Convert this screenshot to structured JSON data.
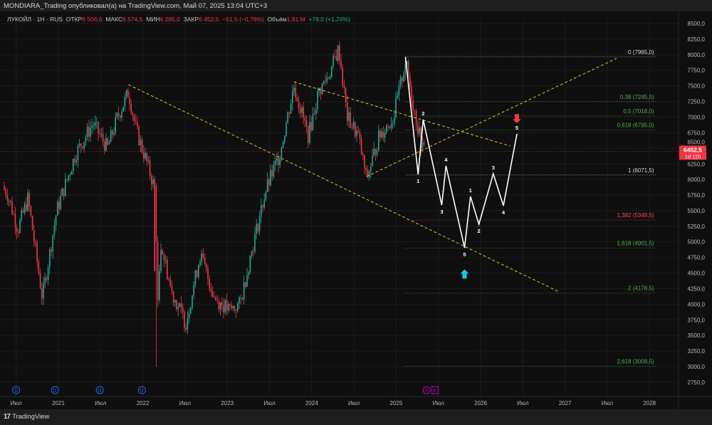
{
  "header": {
    "title": "MONDIARA_Trading опубликовал(а) на TradingView.com, Май 07, 2025 13:04 UTC+3"
  },
  "legend": {
    "symbol": "ЛУКОЙЛ · 1H · RUS",
    "open_label": "ОТКР",
    "open": "6 506,0",
    "high_label": "МАКС",
    "high": "6 574,5",
    "low_label": "МИН",
    "low": "6 285,0",
    "close_label": "ЗАКР",
    "close": "6 452,5",
    "change": "−51,5 (−0,79%)",
    "volume_label": "Объём",
    "volume": "1,91 M",
    "vol_change": "+79,0 (+1,24%)"
  },
  "price_label": {
    "value": "6452,5",
    "countdown": "1d 11h",
    "color": "#f23645"
  },
  "footer": {
    "brand": "TradingView"
  },
  "colors": {
    "up": "#22ab94",
    "down": "#f23645",
    "wave": "#ffffff",
    "trend": "#e6c229"
  },
  "chart_data": {
    "type": "candlestick",
    "y_ticks": [
      "8500,0",
      "8250,0",
      "8000,0",
      "7750,0",
      "7500,0",
      "7250,0",
      "7000,0",
      "6750,0",
      "6500,0",
      "6250,0",
      "6000,0",
      "5750,0",
      "5500,0",
      "5250,0",
      "5000,0",
      "4750,0",
      "4500,0",
      "4250,0",
      "4000,0",
      "3750,0",
      "3500,0",
      "3250,0",
      "3000,0",
      "2750,0"
    ],
    "ylim": [
      2750,
      8500
    ],
    "x_ticks": [
      {
        "t": 2020.5,
        "label": "Июл"
      },
      {
        "t": 2021,
        "label": "2021"
      },
      {
        "t": 2021.5,
        "label": "Июл"
      },
      {
        "t": 2022,
        "label": "2022"
      },
      {
        "t": 2022.5,
        "label": "Июл"
      },
      {
        "t": 2023,
        "label": "2023"
      },
      {
        "t": 2023.5,
        "label": "Июл"
      },
      {
        "t": 2024,
        "label": "2024"
      },
      {
        "t": 2024.5,
        "label": "Июл"
      },
      {
        "t": 2025,
        "label": "2025"
      },
      {
        "t": 2025.5,
        "label": "Июл"
      },
      {
        "t": 2026,
        "label": "2026"
      },
      {
        "t": 2026.5,
        "label": "Июл"
      },
      {
        "t": 2027,
        "label": "2027"
      },
      {
        "t": 2027.5,
        "label": "Июл"
      },
      {
        "t": 2028,
        "label": "2028"
      }
    ],
    "price_path": [
      [
        2020.3,
        5900
      ],
      [
        2020.39,
        5800
      ],
      [
        2020.52,
        5200
      ],
      [
        2020.64,
        5700
      ],
      [
        2020.81,
        4100
      ],
      [
        2020.98,
        5500
      ],
      [
        2021.2,
        6400
      ],
      [
        2021.41,
        6900
      ],
      [
        2021.58,
        6500
      ],
      [
        2021.7,
        7000
      ],
      [
        2021.83,
        7400
      ],
      [
        2021.92,
        6800
      ],
      [
        2022.04,
        6300
      ],
      [
        2022.13,
        5900
      ],
      [
        2022.15,
        3100
      ],
      [
        2022.21,
        5000
      ],
      [
        2022.34,
        4200
      ],
      [
        2022.51,
        3700
      ],
      [
        2022.68,
        4800
      ],
      [
        2022.85,
        4100
      ],
      [
        2023.02,
        3900
      ],
      [
        2023.15,
        4000
      ],
      [
        2023.28,
        4800
      ],
      [
        2023.45,
        5800
      ],
      [
        2023.62,
        6400
      ],
      [
        2023.79,
        7500
      ],
      [
        2023.96,
        6700
      ],
      [
        2024.08,
        7400
      ],
      [
        2024.21,
        7700
      ],
      [
        2024.32,
        8100
      ],
      [
        2024.42,
        7000
      ],
      [
        2024.55,
        6700
      ],
      [
        2024.65,
        6000
      ],
      [
        2024.8,
        6700
      ],
      [
        2024.97,
        7000
      ],
      [
        2025.11,
        7900
      ],
      [
        2025.23,
        7000
      ],
      [
        2025.31,
        6500
      ],
      [
        2025.37,
        6452.5
      ]
    ],
    "fib_levels": [
      {
        "label": "0 (7965,0)",
        "price": 7965,
        "color": "#d8d8d8"
      },
      {
        "label": "0,38 (7245,5)",
        "price": 7245.5,
        "color": "#4caf50"
      },
      {
        "label": "0,5 (7018,0)",
        "price": 7018,
        "color": "#4caf50"
      },
      {
        "label": "0,618 (6795,0)",
        "price": 6795,
        "color": "#4caf50"
      },
      {
        "label": "1 (6071,5)",
        "price": 6071.5,
        "color": "#d8d8d8"
      },
      {
        "label": "1,382 (5348,5)",
        "price": 5348.5,
        "color": "#f05050"
      },
      {
        "label": "1,618 (4901,5)",
        "price": 4901.5,
        "color": "#4caf50"
      },
      {
        "label": "2 (4178,5)",
        "price": 4178.5,
        "color": "#4caf50"
      },
      {
        "label": "2,618 (3008,5)",
        "price": 3008.5,
        "color": "#4caf50"
      }
    ],
    "fib_range": [
      2025.11,
      2028.07
    ],
    "wave": [
      {
        "t": 2025.11,
        "p": 7965,
        "label": ""
      },
      {
        "t": 2025.26,
        "p": 6081,
        "label": "1"
      },
      {
        "t": 2025.32,
        "p": 6960,
        "label": "2"
      },
      {
        "t": 2025.54,
        "p": 5590,
        "label": "3"
      },
      {
        "t": 2025.59,
        "p": 6218,
        "label": "4"
      },
      {
        "t": 2025.81,
        "p": 4906,
        "label": "5"
      },
      {
        "t": 2025.88,
        "p": 5727,
        "label": "1"
      },
      {
        "t": 2025.98,
        "p": 5282,
        "label": "2"
      },
      {
        "t": 2026.15,
        "p": 6092,
        "label": "3"
      },
      {
        "t": 2026.27,
        "p": 5579,
        "label": "4"
      },
      {
        "t": 2026.43,
        "p": 6731,
        "label": "5"
      }
    ],
    "trendlines": [
      [
        [
          2021.83,
          7519
        ],
        [
          2026.93,
          4198
        ]
      ],
      [
        [
          2023.79,
          7564
        ],
        [
          2026.35,
          6537
        ]
      ],
      [
        [
          2024.65,
          6047
        ],
        [
          2027.61,
          7941
        ]
      ]
    ],
    "arrows": [
      {
        "t": 2025.81,
        "p": 4480,
        "dir": "up",
        "color": "#1ec8e8"
      },
      {
        "t": 2026.43,
        "p": 6980,
        "dir": "down",
        "color": "#f23645"
      }
    ],
    "events": [
      {
        "t": 2020.5,
        "label": "D"
      },
      {
        "t": 2020.96,
        "label": "D"
      },
      {
        "t": 2021.49,
        "label": "D"
      },
      {
        "t": 2021.99,
        "label": "D"
      },
      {
        "t": 2025.36,
        "label": "S"
      },
      {
        "t": 2025.39,
        "label": "E"
      }
    ]
  }
}
